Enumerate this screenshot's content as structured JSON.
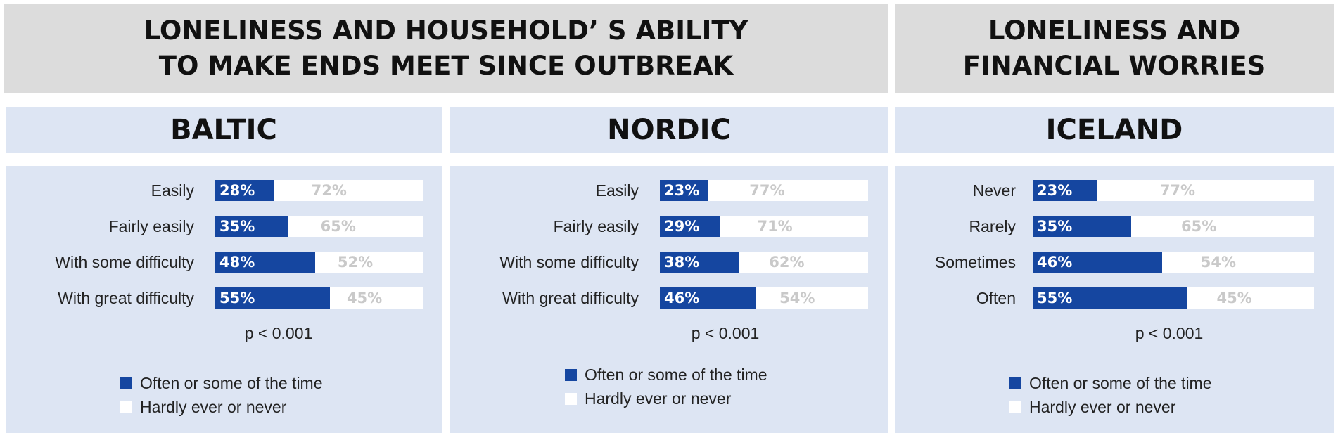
{
  "headers": {
    "left": [
      "LONELINESS AND HOUSEHOLD’ S ABILITY",
      "TO MAKE ENDS MEET SINCE OUTBREAK"
    ],
    "right": [
      "LONELINESS AND",
      "FINANCIAL WORRIES"
    ]
  },
  "colors": {
    "often": "#1546a0",
    "hardly": "#ffffff",
    "panel": "#dde5f3",
    "header": "#dcdcdc"
  },
  "chart_data": [
    {
      "type": "bar",
      "stacked": true,
      "orientation": "horizontal",
      "title": "BALTIC",
      "categories": [
        "Easily",
        "Fairly easily",
        "With some difficulty",
        "With great difficulty"
      ],
      "series": [
        {
          "name": "Often or some of the time",
          "values": [
            28,
            35,
            48,
            55
          ]
        },
        {
          "name": "Hardly ever or never",
          "values": [
            72,
            65,
            52,
            45
          ]
        }
      ],
      "value_labels": {
        "often": [
          "28%",
          "35%",
          "48%",
          "55%"
        ],
        "hardly": [
          "72%",
          "65%",
          "52%",
          "45%"
        ]
      },
      "annotation": "p < 0.001",
      "xlim": [
        0,
        100
      ]
    },
    {
      "type": "bar",
      "stacked": true,
      "orientation": "horizontal",
      "title": "NORDIC",
      "categories": [
        "Easily",
        "Fairly easily",
        "With some difficulty",
        "With great difficulty"
      ],
      "series": [
        {
          "name": "Often or some of the time",
          "values": [
            23,
            29,
            38,
            46
          ]
        },
        {
          "name": "Hardly ever or never",
          "values": [
            77,
            71,
            62,
            54
          ]
        }
      ],
      "value_labels": {
        "often": [
          "23%",
          "29%",
          "38%",
          "46%"
        ],
        "hardly": [
          "77%",
          "71%",
          "62%",
          "54%"
        ]
      },
      "annotation": "p < 0.001",
      "xlim": [
        0,
        100
      ]
    },
    {
      "type": "bar",
      "stacked": true,
      "orientation": "horizontal",
      "title": "ICELAND",
      "categories": [
        "Never",
        "Rarely",
        "Sometimes",
        "Often"
      ],
      "series": [
        {
          "name": "Often or some of the time",
          "values": [
            23,
            35,
            46,
            55
          ]
        },
        {
          "name": "Hardly ever or never",
          "values": [
            77,
            65,
            54,
            45
          ]
        }
      ],
      "value_labels": {
        "often": [
          "23%",
          "35%",
          "46%",
          "55%"
        ],
        "hardly": [
          "77%",
          "65%",
          "54%",
          "45%"
        ]
      },
      "annotation": "p < 0.001",
      "xlim": [
        0,
        100
      ]
    }
  ]
}
